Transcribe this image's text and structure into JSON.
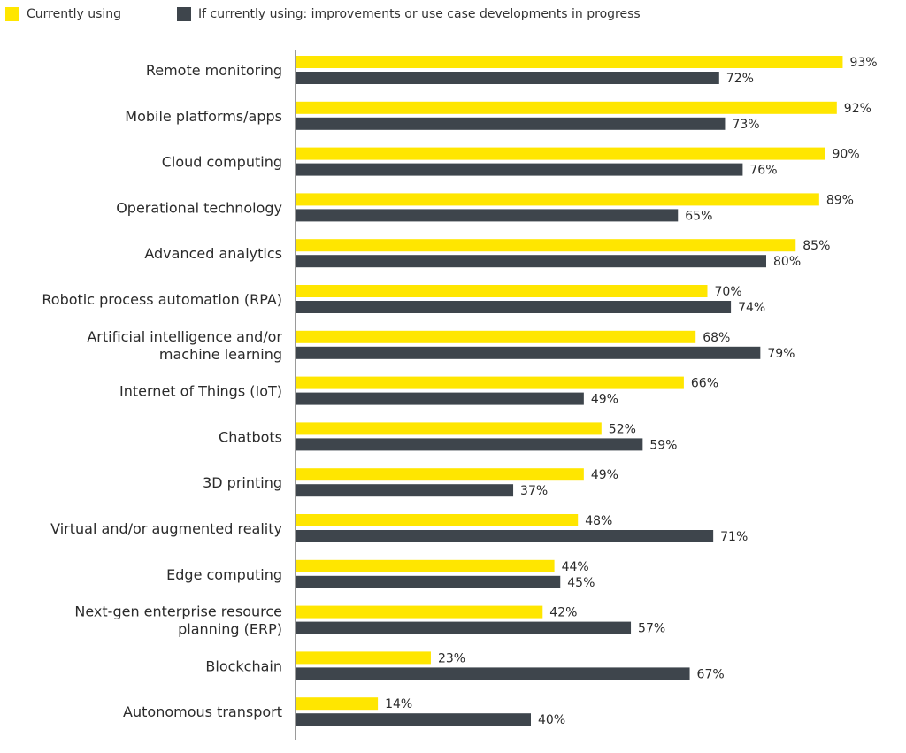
{
  "legend": {
    "currently_using": "Currently using",
    "improvements": "If currently using: improvements or use case developments in progress"
  },
  "colors": {
    "currently_using": "#FFE600",
    "improvements": "#3E454C",
    "axis": "#9a9a9a"
  },
  "chart_data": {
    "type": "bar",
    "orientation": "horizontal",
    "categories": [
      [
        "Remote monitoring"
      ],
      [
        "Mobile platforms/apps"
      ],
      [
        "Cloud computing"
      ],
      [
        "Operational technology"
      ],
      [
        "Advanced analytics"
      ],
      [
        "Robotic process automation (RPA)"
      ],
      [
        "Artificial intelligence and/or",
        "machine learning"
      ],
      [
        "Internet of Things (IoT)"
      ],
      [
        "Chatbots"
      ],
      [
        "3D printing"
      ],
      [
        "Virtual and/or augmented reality"
      ],
      [
        "Edge computing"
      ],
      [
        "Next-gen enterprise resource",
        "planning (ERP)"
      ],
      [
        "Blockchain"
      ],
      [
        "Autonomous transport"
      ]
    ],
    "series": [
      {
        "name": "Currently using",
        "values": [
          93,
          92,
          90,
          89,
          85,
          70,
          68,
          66,
          52,
          49,
          48,
          44,
          42,
          23,
          14
        ],
        "labels": [
          "93%",
          "92%",
          "90%",
          "89%",
          "85%",
          "70%",
          "68%",
          "66%",
          "52%",
          "49%",
          "48%",
          "44%",
          "42%",
          "23%",
          "14%"
        ]
      },
      {
        "name": "If currently using: improvements or use case developments in progress",
        "values": [
          72,
          73,
          76,
          65,
          80,
          74,
          79,
          49,
          59,
          37,
          71,
          45,
          57,
          67,
          40
        ],
        "labels": [
          "72%",
          "73%",
          "76%",
          "65%",
          "80%",
          "74%",
          "79%",
          "49%",
          "59%",
          "37%",
          "71%",
          "45%",
          "57%",
          "67%",
          "40%"
        ]
      }
    ],
    "xlim": [
      0,
      100
    ],
    "grid": false,
    "legend_position": "top-left"
  }
}
